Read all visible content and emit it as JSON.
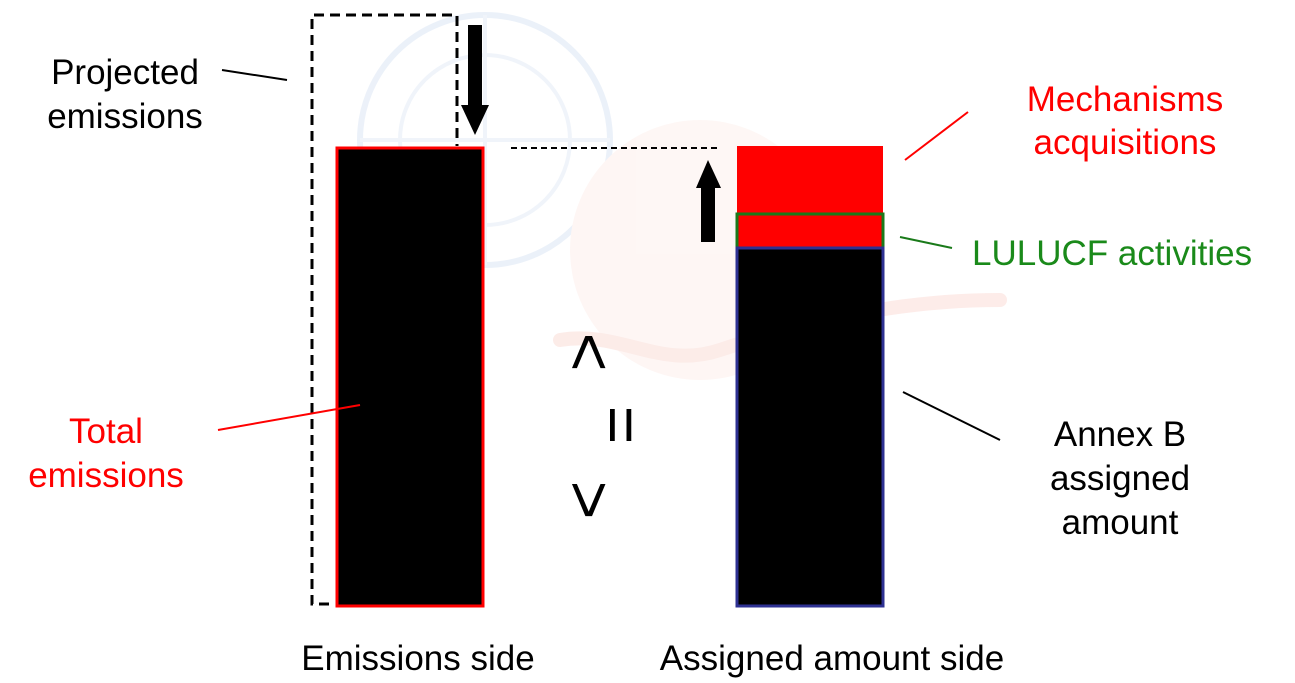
{
  "labels": {
    "projected_line1": "Projected",
    "projected_line2": "emissions",
    "total_line1": "Total",
    "total_line2": "emissions",
    "mechanisms_line1": "Mechanisms",
    "mechanisms_line2": "acquisitions",
    "lulucf": "LULUCF activities",
    "annexb_line1": "Annex B",
    "annexb_line2": "assigned",
    "annexb_line3": "amount",
    "emissions_side": "Emissions side",
    "assigned_side": "Assigned amount side"
  },
  "comparison": {
    "less": "<",
    "equal": "=",
    "greater": ">"
  },
  "colors": {
    "emissions_bar_fill": "#000000",
    "emissions_bar_border": "#ff0000",
    "assigned_bar_fill": "#000000",
    "assigned_bar_border": "#2e3192",
    "mechanisms_fill": "#ff0000",
    "lulucf_fill": "#ff0000",
    "lulucf_border": "#1a7a1a",
    "red_text": "#ff0000",
    "green_text": "#1a8a1a",
    "black_text": "#000000"
  }
}
